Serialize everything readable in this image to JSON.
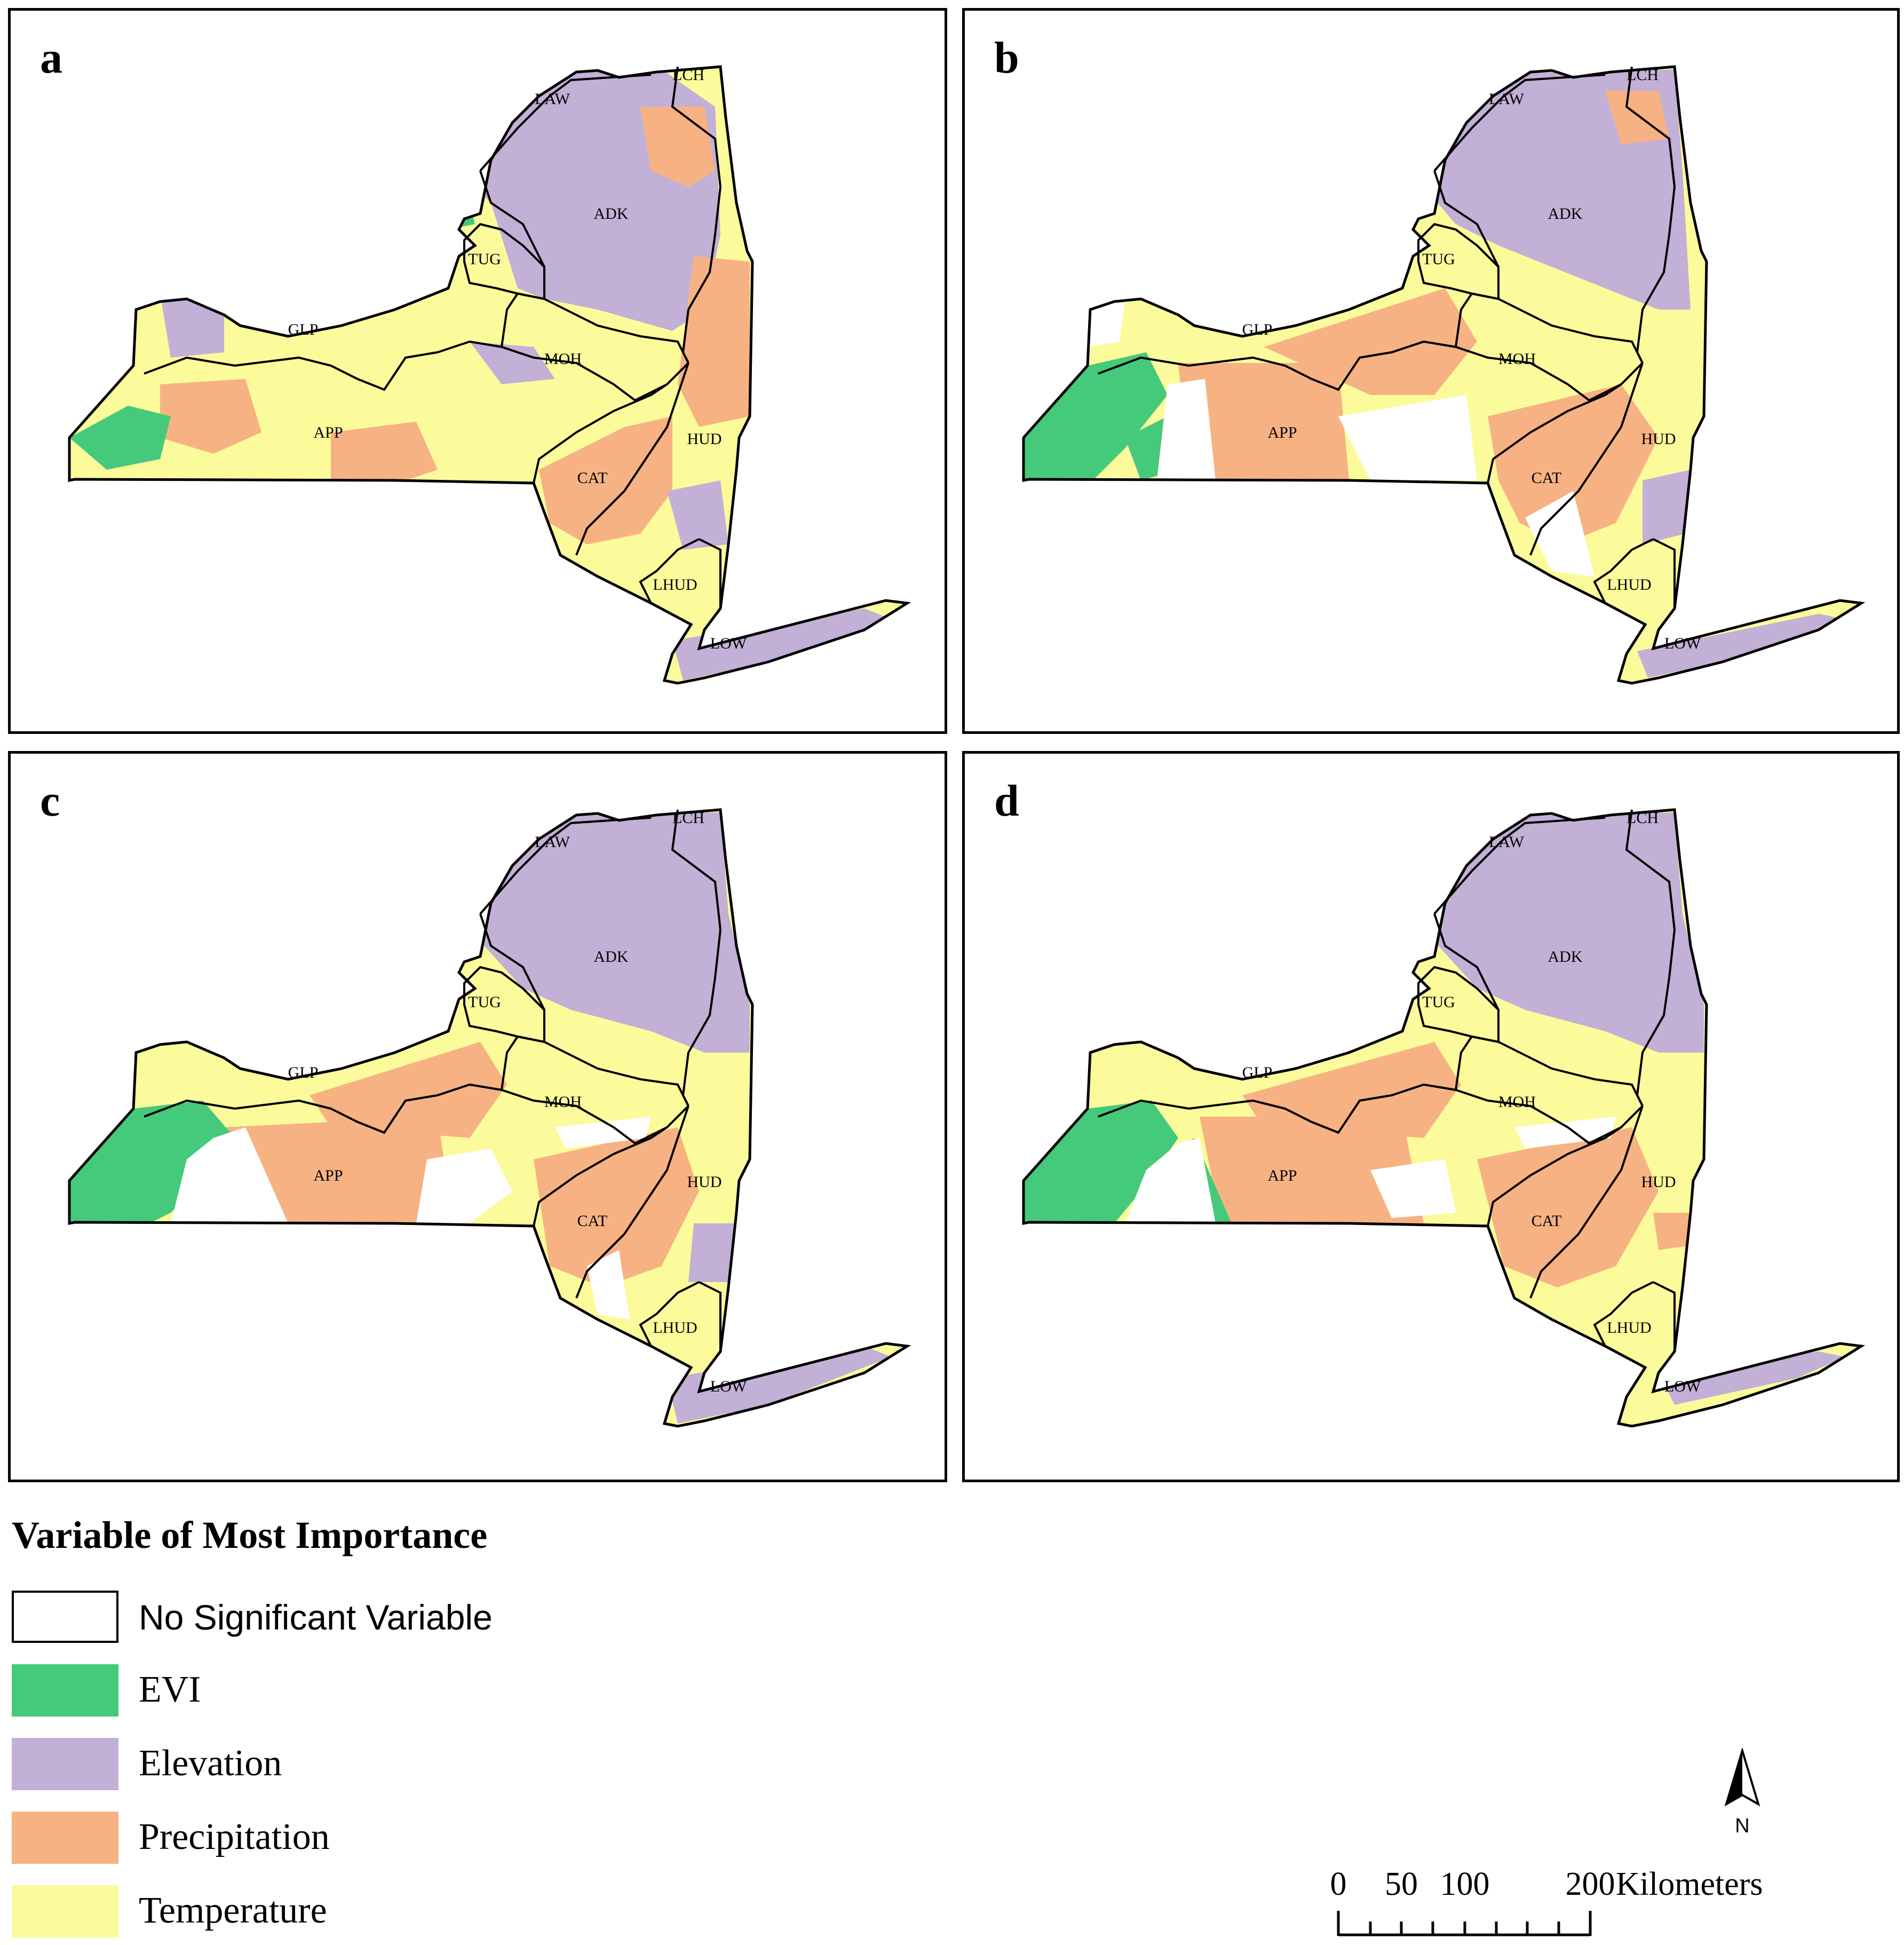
{
  "panels": [
    {
      "letter": "a"
    },
    {
      "letter": "b"
    },
    {
      "letter": "c"
    },
    {
      "letter": "d"
    }
  ],
  "region_labels": {
    "LAW": "LAW",
    "LCH": "LCH",
    "ADK": "ADK",
    "TUG": "TUG",
    "GLP": "GLP",
    "MOH": "MOH",
    "APP": "APP",
    "HUD": "HUD",
    "CAT": "CAT",
    "LHUD": "LHUD",
    "LOW": "LOW"
  },
  "legend": {
    "title": "Variable of Most Importance",
    "items": [
      {
        "label": "No Significant Variable",
        "color": "#ffffff"
      },
      {
        "label": "EVI",
        "color": "#45c97a"
      },
      {
        "label": "Elevation",
        "color": "#c3b0d6"
      },
      {
        "label": "Precipitation",
        "color": "#f7b283"
      },
      {
        "label": "Temperature",
        "color": "#fbfb9b"
      }
    ]
  },
  "scale": {
    "ticks": [
      "0",
      "50",
      "100",
      "200"
    ],
    "unit": "Kilometers"
  },
  "north_label": "N"
}
